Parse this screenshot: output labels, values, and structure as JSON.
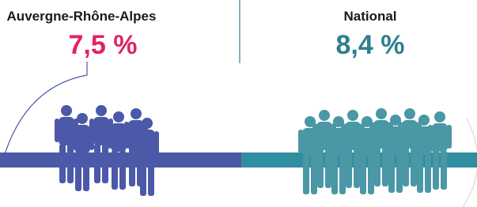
{
  "left": {
    "label": "Auvergne-Rhône-Alpes",
    "value": "7,5 %"
  },
  "right": {
    "label": "National",
    "value": "8,4 %"
  }
}
